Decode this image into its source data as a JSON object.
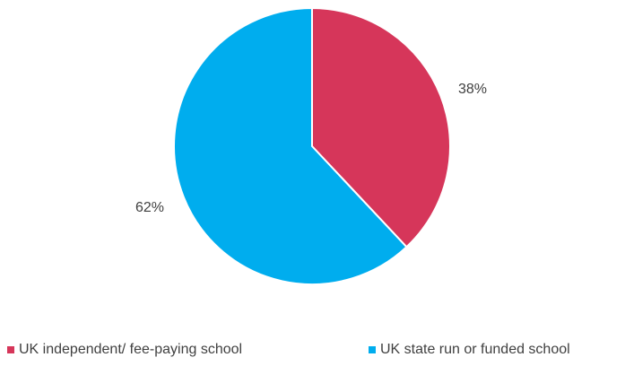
{
  "chart_data": {
    "type": "pie",
    "title": "",
    "start_angle_deg": 0,
    "direction": "clockwise",
    "slices": [
      {
        "label": "UK independent/ fee-paying school",
        "value": 38,
        "value_label": "38%",
        "color": "#d6365a"
      },
      {
        "label": "UK state run or funded school",
        "value": 62,
        "value_label": "62%",
        "color": "#00adee"
      }
    ],
    "legend": {
      "position": "bottom",
      "entries": [
        "UK independent/ fee-paying school",
        "UK state run or funded school"
      ]
    }
  }
}
